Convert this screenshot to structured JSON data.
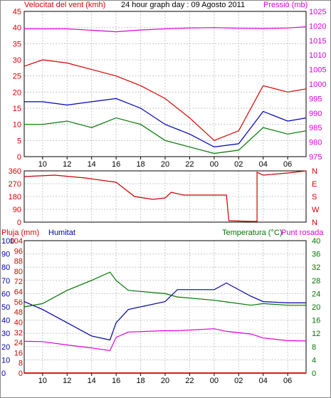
{
  "header": {
    "wind_title": "Velocitat del vent (kmh)",
    "graph_title": "24 hour graph day : 09 Agosto 2011",
    "pressure_title": "Pressió (mb)"
  },
  "bottom_header": {
    "rain_title": "Pluja (mm)",
    "humidity_title": "Humitat",
    "temp_title": "Temperatura (°C)",
    "dew_title": "Punt rosada"
  },
  "colors": {
    "wind_gust": "#dd0000",
    "wind_avg": "#0000bb",
    "wind_min": "#007700",
    "pressure": "#dd00dd",
    "direction": "#cc0000",
    "humidity": "#0000aa",
    "temperature": "#007700",
    "dew_point": "#dd00dd",
    "rain": "#cc0000",
    "grid": "#c8c8c8"
  },
  "x_axis_labels": [
    "10",
    "12",
    "14",
    "16",
    "18",
    "20",
    "22",
    "00",
    "02",
    "04",
    "06"
  ],
  "chart_data": [
    {
      "type": "line",
      "title": "24 hour graph day : 09 Agosto 2011",
      "ylabel_left": "Velocitat del vent (kmh)",
      "ylabel_right": "Pressió (mb)",
      "y_left_ticks": [
        "0",
        "5",
        "10",
        "15",
        "20",
        "25",
        "30",
        "35",
        "40",
        "45"
      ],
      "y_right_ticks": [
        "975",
        "980",
        "985",
        "990",
        "995",
        "1000",
        "1005",
        "1010",
        "1015",
        "1020",
        "1025"
      ],
      "ylim_left": [
        0,
        45
      ],
      "ylim_right": [
        975,
        1025
      ],
      "x": [
        8.5,
        10,
        12,
        14,
        16,
        18,
        20,
        22,
        24,
        26,
        28,
        30,
        31.5
      ],
      "series": [
        {
          "name": "Velocitat del vent (kmh)",
          "axis": "left",
          "style": "gust",
          "values": [
            28,
            30,
            29,
            27,
            25,
            22,
            18,
            12,
            5,
            8,
            22,
            20,
            21
          ]
        },
        {
          "name": "",
          "axis": "left",
          "style": "avg",
          "values": [
            17,
            17,
            16,
            17,
            18,
            15,
            10,
            7,
            3,
            4,
            14,
            11,
            12
          ]
        },
        {
          "name": "",
          "axis": "left",
          "style": "min",
          "values": [
            10,
            10,
            11,
            9,
            12,
            10,
            5,
            3,
            1,
            2,
            9,
            7,
            8
          ]
        },
        {
          "name": "Pressió (mb)",
          "axis": "right",
          "style": "pressure",
          "values": [
            1019,
            1019,
            1019,
            1018.5,
            1018,
            1018.6,
            1019,
            1019.3,
            1019.4,
            1019.2,
            1019.1,
            1019.3,
            1019.7
          ]
        }
      ]
    },
    {
      "type": "line",
      "y_ticks": [
        "0",
        "90",
        "180",
        "270",
        "360"
      ],
      "y_right_labels": [
        "N",
        "W",
        "S",
        "E",
        "N"
      ],
      "ylim": [
        0,
        360
      ],
      "x": [
        8.5,
        11,
        13.5,
        16,
        17.5,
        19,
        20,
        20.5,
        21.5,
        25,
        25.2,
        27,
        27.5,
        27.5,
        28,
        30,
        31.5
      ],
      "series": [
        {
          "name": "",
          "values": [
            320,
            330,
            310,
            280,
            180,
            160,
            170,
            210,
            190,
            190,
            10,
            5,
            5,
            350,
            330,
            345,
            360
          ]
        }
      ]
    },
    {
      "type": "line",
      "y_left_ticks_rain": [
        "0",
        "8",
        "16",
        "24",
        "32",
        "40",
        "48",
        "56",
        "64",
        "72",
        "80",
        "88",
        "96",
        "104"
      ],
      "y_left_ticks_humidity": [
        "0",
        "10",
        "20",
        "30",
        "40",
        "50",
        "60",
        "70",
        "80",
        "90",
        "100"
      ],
      "y_right_ticks": [
        "0",
        "4",
        "8",
        "12",
        "16",
        "20",
        "24",
        "28",
        "32",
        "36",
        "40"
      ],
      "ylim_humidity": [
        0,
        100
      ],
      "ylim_temp": [
        0,
        40
      ],
      "x": [
        8.5,
        10,
        12,
        14,
        15.5,
        16,
        17,
        20,
        21,
        24,
        25,
        27,
        28,
        30,
        31.5
      ],
      "series": [
        {
          "name": "Humitat",
          "axis": "left",
          "values": [
            54,
            48,
            38,
            28,
            25,
            38,
            48,
            54,
            63,
            63,
            68,
            58,
            54,
            53,
            53
          ]
        },
        {
          "name": "Temperatura (°C)",
          "axis": "right",
          "values": [
            20,
            21,
            25,
            28,
            30.5,
            28,
            25,
            24,
            23,
            22,
            21.5,
            20.5,
            21,
            20.5,
            20.5
          ]
        },
        {
          "name": "Punt rosada",
          "axis": "right",
          "values": [
            9.6,
            9.5,
            8.5,
            7.6,
            6.8,
            10.8,
            12.4,
            12.8,
            12.8,
            13.4,
            12.6,
            11.8,
            10.6,
            9.8,
            9.7
          ]
        },
        {
          "name": "Pluja (mm)",
          "axis": "left",
          "values": [
            0,
            0,
            0,
            0,
            0,
            0,
            0,
            0,
            0,
            0,
            0,
            0,
            0,
            0,
            0
          ]
        }
      ]
    }
  ]
}
